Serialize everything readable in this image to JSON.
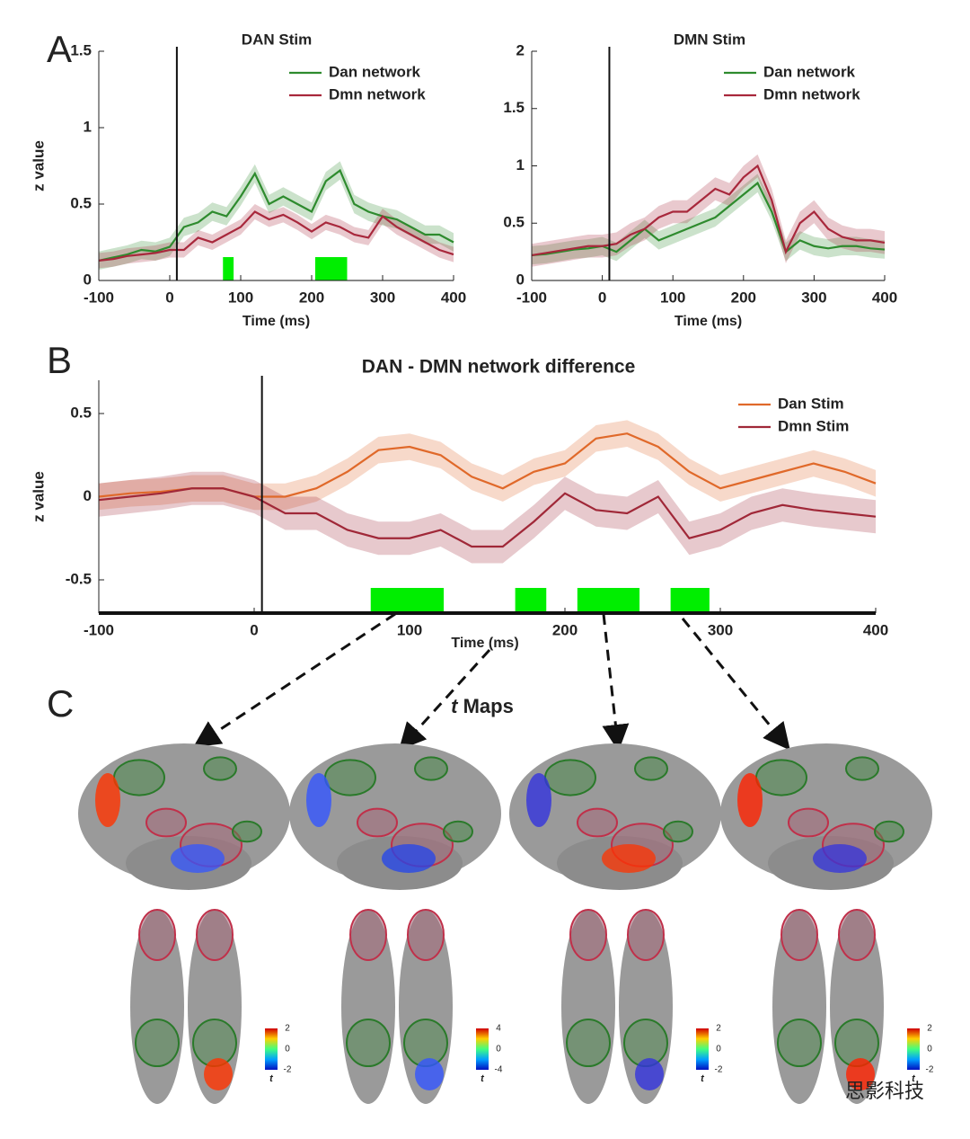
{
  "chart_data": [
    {
      "type": "line",
      "title": "DAN Stim",
      "xlabel": "Time (ms)",
      "ylabel": "z value",
      "x": [
        -100,
        -80,
        -60,
        -40,
        -20,
        0,
        20,
        40,
        60,
        80,
        100,
        120,
        140,
        160,
        180,
        200,
        220,
        240,
        260,
        280,
        300,
        320,
        340,
        360,
        380,
        400
      ],
      "series": [
        {
          "name": "Dan network",
          "color": "#2e8b2e",
          "error": 0.06,
          "values": [
            0.13,
            0.15,
            0.17,
            0.2,
            0.19,
            0.22,
            0.35,
            0.38,
            0.45,
            0.42,
            0.55,
            0.7,
            0.5,
            0.55,
            0.5,
            0.45,
            0.65,
            0.72,
            0.5,
            0.45,
            0.42,
            0.4,
            0.35,
            0.3,
            0.3,
            0.25
          ]
        },
        {
          "name": "Dmn network",
          "color": "#a8283c",
          "error": 0.05,
          "values": [
            0.13,
            0.14,
            0.16,
            0.17,
            0.18,
            0.2,
            0.2,
            0.28,
            0.25,
            0.3,
            0.35,
            0.45,
            0.4,
            0.43,
            0.38,
            0.32,
            0.38,
            0.35,
            0.3,
            0.28,
            0.42,
            0.35,
            0.3,
            0.25,
            0.2,
            0.17
          ]
        }
      ],
      "significant_intervals": [
        [
          75,
          90
        ],
        [
          205,
          250
        ]
      ],
      "significance_color": "#00ee00",
      "onset": 10,
      "xlim": [
        -100,
        400
      ],
      "xticks": [
        -100,
        0,
        100,
        200,
        300,
        400
      ],
      "ylim": [
        0,
        1.5
      ],
      "yticks": [
        0,
        0.5,
        1,
        1.5
      ]
    },
    {
      "type": "line",
      "title": "DMN Stim",
      "xlabel": "Time (ms)",
      "x": [
        -100,
        -80,
        -60,
        -40,
        -20,
        0,
        20,
        40,
        60,
        80,
        100,
        120,
        140,
        160,
        180,
        200,
        220,
        240,
        260,
        280,
        300,
        320,
        340,
        360,
        380,
        400
      ],
      "series": [
        {
          "name": "Dan network",
          "color": "#2e8b2e",
          "error": 0.08,
          "values": [
            0.22,
            0.23,
            0.25,
            0.27,
            0.28,
            0.3,
            0.25,
            0.35,
            0.45,
            0.35,
            0.4,
            0.45,
            0.5,
            0.55,
            0.65,
            0.75,
            0.85,
            0.6,
            0.25,
            0.35,
            0.3,
            0.28,
            0.3,
            0.3,
            0.28,
            0.27
          ]
        },
        {
          "name": "Dmn network",
          "color": "#a8283c",
          "error": 0.1,
          "values": [
            0.22,
            0.24,
            0.26,
            0.28,
            0.3,
            0.3,
            0.32,
            0.4,
            0.45,
            0.55,
            0.6,
            0.6,
            0.7,
            0.8,
            0.75,
            0.9,
            1.0,
            0.7,
            0.25,
            0.5,
            0.6,
            0.45,
            0.38,
            0.35,
            0.35,
            0.33
          ]
        }
      ],
      "onset": 10,
      "xlim": [
        -100,
        400
      ],
      "xticks": [
        -100,
        0,
        100,
        200,
        300,
        400
      ],
      "ylim": [
        0,
        2
      ],
      "yticks": [
        0,
        0.5,
        1,
        1.5,
        2
      ]
    },
    {
      "type": "line",
      "title": "DAN - DMN network difference",
      "xlabel": "Time (ms)",
      "ylabel": "z value",
      "x": [
        -100,
        -80,
        -60,
        -40,
        -20,
        0,
        20,
        40,
        60,
        80,
        100,
        120,
        140,
        160,
        180,
        200,
        220,
        240,
        260,
        280,
        300,
        320,
        340,
        360,
        380,
        400
      ],
      "series": [
        {
          "name": "Dan Stim",
          "color": "#e0692a",
          "error": 0.08,
          "values": [
            0,
            0.02,
            0.03,
            0.05,
            0.05,
            0.0,
            0.0,
            0.05,
            0.15,
            0.28,
            0.3,
            0.25,
            0.12,
            0.05,
            0.15,
            0.2,
            0.35,
            0.38,
            0.3,
            0.15,
            0.05,
            0.1,
            0.15,
            0.2,
            0.15,
            0.08
          ]
        },
        {
          "name": "Dmn Stim",
          "color": "#a02838",
          "error": 0.1,
          "values": [
            -0.02,
            0.0,
            0.02,
            0.05,
            0.05,
            0.0,
            -0.1,
            -0.1,
            -0.2,
            -0.25,
            -0.25,
            -0.2,
            -0.3,
            -0.3,
            -0.15,
            0.02,
            -0.08,
            -0.1,
            0.0,
            -0.25,
            -0.2,
            -0.1,
            -0.05,
            -0.08,
            -0.1,
            -0.12
          ]
        }
      ],
      "significant_intervals": [
        [
          75,
          122
        ],
        [
          168,
          188
        ],
        [
          208,
          248
        ],
        [
          268,
          293
        ]
      ],
      "significance_color": "#00ee00",
      "onset": 5,
      "xlim": [
        -100,
        400
      ],
      "xticks": [
        -100,
        0,
        100,
        200,
        300,
        400
      ],
      "ylim": [
        -0.7,
        0.7
      ],
      "yticks": [
        -0.5,
        0,
        0.5
      ]
    }
  ],
  "panel_labels": [
    "A",
    "B",
    "C"
  ],
  "maps_title": [
    "t",
    "Maps"
  ],
  "colorbars": [
    {
      "ticks": [
        2,
        0,
        -2
      ],
      "label": "t"
    },
    {
      "ticks": [
        4,
        0,
        -4
      ],
      "label": "t"
    },
    {
      "ticks": [
        2,
        0,
        -2
      ],
      "label": "t"
    },
    {
      "ticks": [
        2,
        0,
        -2
      ],
      "label": "t"
    }
  ],
  "watermark": "思影科技"
}
